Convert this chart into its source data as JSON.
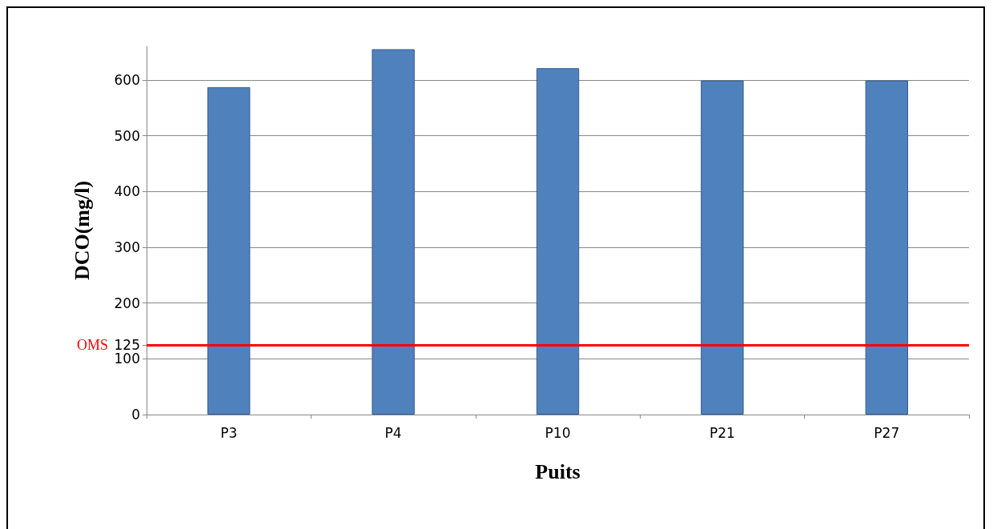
{
  "chart_data": {
    "type": "bar",
    "xlabel": "Puits",
    "ylabel": "DCO(mg/l)",
    "categories": [
      "P3",
      "P4",
      "P10",
      "P21",
      "P27"
    ],
    "values": [
      587,
      655,
      621,
      599,
      599
    ],
    "color": "#4f81bd",
    "ylim": [
      0,
      660
    ],
    "yticks": [
      0,
      100,
      125,
      200,
      300,
      400,
      500,
      600
    ],
    "grid": "y",
    "ref_lines": [
      {
        "axis": "y",
        "value": 125,
        "label": "OMS",
        "color": "#ff0000"
      }
    ]
  }
}
